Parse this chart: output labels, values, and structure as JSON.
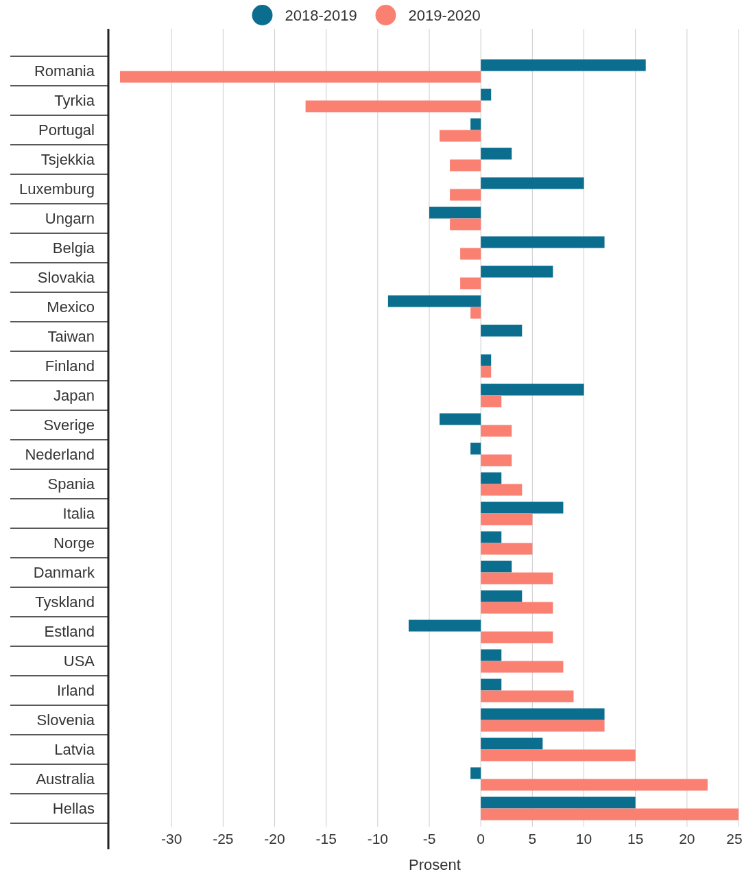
{
  "chart_data": {
    "type": "bar",
    "orientation": "horizontal",
    "xlabel": "Prosent",
    "categories": [
      "Romania",
      "Tyrkia",
      "Portugal",
      "Tsjekkia",
      "Luxemburg",
      "Ungarn",
      "Belgia",
      "Slovakia",
      "Mexico",
      "Taiwan",
      "Finland",
      "Japan",
      "Sverige",
      "Nederland",
      "Spania",
      "Italia",
      "Norge",
      "Danmark",
      "Tyskland",
      "Estland",
      "USA",
      "Irland",
      "Slovenia",
      "Latvia",
      "Australia",
      "Hellas"
    ],
    "series": [
      {
        "name": "2018-2019",
        "color": "#0b6e8e",
        "values": [
          16,
          1,
          -1,
          3,
          10,
          -5,
          12,
          7,
          -9,
          4,
          1,
          10,
          -4,
          -1,
          2,
          8,
          2,
          3,
          4,
          -7,
          2,
          2,
          12,
          6,
          -1,
          15
        ]
      },
      {
        "name": "2019-2020",
        "color": "#fa8072",
        "values": [
          -35,
          -17,
          -4,
          -3,
          -3,
          -3,
          -2,
          -2,
          -1,
          0,
          1,
          2,
          3,
          3,
          4,
          5,
          5,
          7,
          7,
          7,
          8,
          9,
          12,
          15,
          22,
          25
        ]
      }
    ],
    "xlim": [
      -36,
      25
    ],
    "xticks": [
      -30,
      -25,
      -20,
      -15,
      -10,
      -5,
      0,
      5,
      10,
      15,
      20,
      25
    ],
    "grid": "x",
    "legend": "top"
  }
}
